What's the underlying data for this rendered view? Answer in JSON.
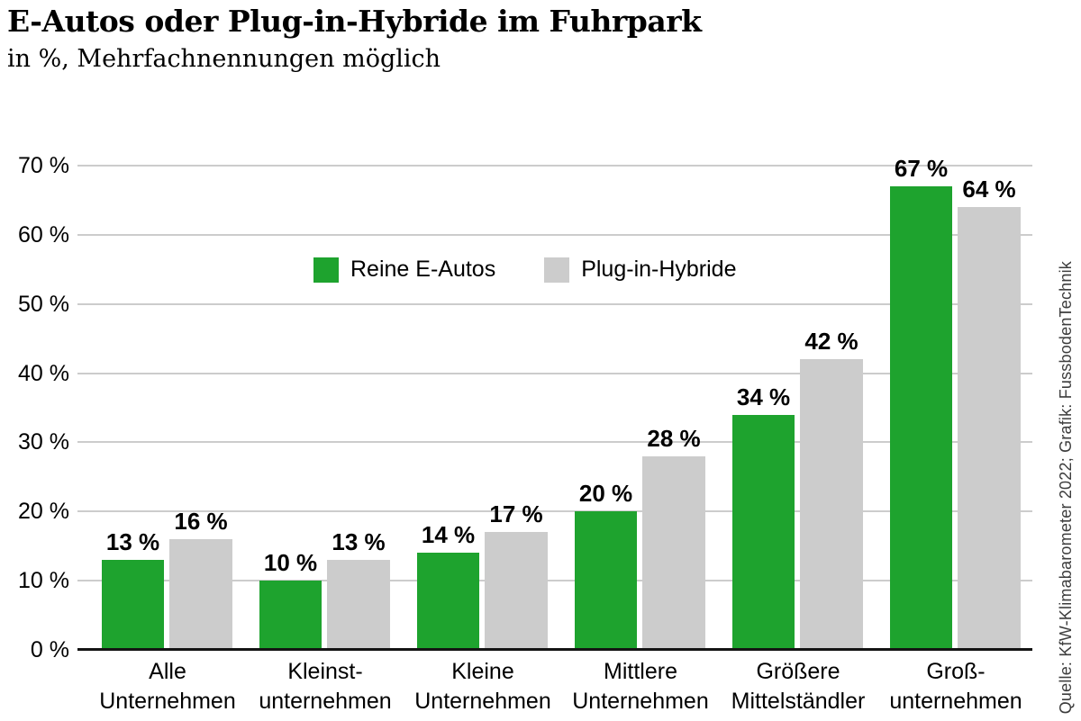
{
  "source_note": "Quelle: KfW-Klimabarometer 2022; Grafik: FussbodenTechnik",
  "chart_data": {
    "type": "bar",
    "title": "E-Autos oder Plug-in-Hybride im Fuhrpark",
    "subtitle": "in %, Mehrfachnennungen möglich",
    "categories": [
      "Alle\nUnternehmen",
      "Kleinst-\nunternehmen",
      "Kleine\nUnternehmen",
      "Mittlere\nUnternehmen",
      "Größere\nMittelständler",
      "Groß-\nunternehmen"
    ],
    "series": [
      {
        "name": "Reine E-Autos",
        "color": "#1EA32E",
        "values": [
          13,
          10,
          14,
          20,
          34,
          67
        ]
      },
      {
        "name": "Plug-in-Hybride",
        "color": "#CCCCCC",
        "values": [
          16,
          13,
          17,
          28,
          42,
          64
        ]
      }
    ],
    "value_suffix": " %",
    "ylim": [
      0,
      70
    ],
    "yticks": [
      0,
      10,
      20,
      30,
      40,
      50,
      60,
      70
    ],
    "ytick_suffix": " %",
    "grid": true,
    "legend_position": "inside-top-center",
    "colors": {
      "grid": "#cccccc",
      "axis": "#141414",
      "text": "#000000"
    }
  }
}
